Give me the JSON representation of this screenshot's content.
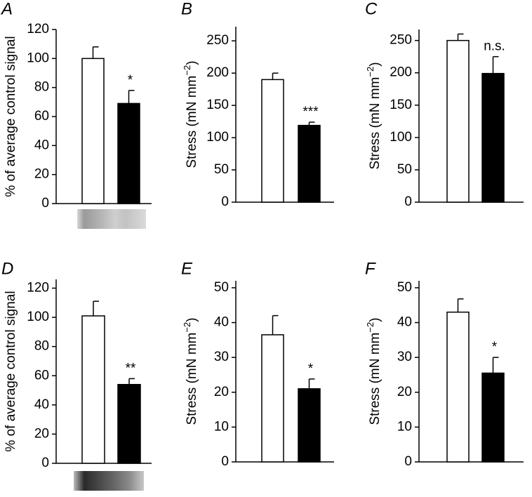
{
  "chart_data": [
    {
      "type": "bar",
      "panel": "A",
      "ylabel": [
        "% of average control signal"
      ],
      "ylim": [
        0,
        120
      ],
      "yticks": [
        0,
        20,
        40,
        60,
        80,
        100,
        120
      ],
      "values": [
        100,
        69
      ],
      "errors": [
        8,
        9
      ],
      "colors": [
        "#ffffff",
        "#000000"
      ],
      "annotation": "*"
    },
    {
      "type": "bar",
      "panel": "B",
      "ylabel": [
        "Stress (mN mm",
        "−2",
        ")"
      ],
      "ylim": [
        0,
        272
      ],
      "yticks": [
        0,
        50,
        100,
        150,
        200,
        250
      ],
      "values": [
        190,
        119
      ],
      "errors": [
        10,
        5
      ],
      "colors": [
        "#ffffff",
        "#000000"
      ],
      "annotation": "***"
    },
    {
      "type": "bar",
      "panel": "C",
      "ylabel": [
        "Stress (mN mm",
        "−2",
        ")"
      ],
      "ylim": [
        0,
        267
      ],
      "yticks": [
        0,
        50,
        100,
        150,
        200,
        250
      ],
      "values": [
        250,
        199
      ],
      "errors": [
        10,
        26
      ],
      "colors": [
        "#ffffff",
        "#000000"
      ],
      "annotation": "n.s."
    },
    {
      "type": "bar",
      "panel": "D",
      "ylabel": [
        "% of average control signal"
      ],
      "ylim": [
        0,
        126
      ],
      "yticks": [
        0,
        20,
        40,
        60,
        80,
        100,
        120
      ],
      "values": [
        101,
        54
      ],
      "errors": [
        10,
        4
      ],
      "colors": [
        "#ffffff",
        "#000000"
      ],
      "annotation": "**"
    },
    {
      "type": "bar",
      "panel": "E",
      "ylabel": [
        "Stress (mN mm",
        "−2",
        ")"
      ],
      "ylim": [
        0,
        52
      ],
      "yticks": [
        0,
        10,
        20,
        30,
        40,
        50
      ],
      "values": [
        36.5,
        21
      ],
      "errors": [
        5.5,
        2.8
      ],
      "colors": [
        "#ffffff",
        "#000000"
      ],
      "annotation": "*"
    },
    {
      "type": "bar",
      "panel": "F",
      "ylabel": [
        "Stress (mN mm",
        "−2",
        ")"
      ],
      "ylim": [
        0,
        52
      ],
      "yticks": [
        0,
        10,
        20,
        30,
        40,
        50
      ],
      "values": [
        43,
        25.5
      ],
      "errors": [
        3.8,
        4.5
      ],
      "colors": [
        "#ffffff",
        "#000000"
      ],
      "annotation": "*"
    }
  ]
}
